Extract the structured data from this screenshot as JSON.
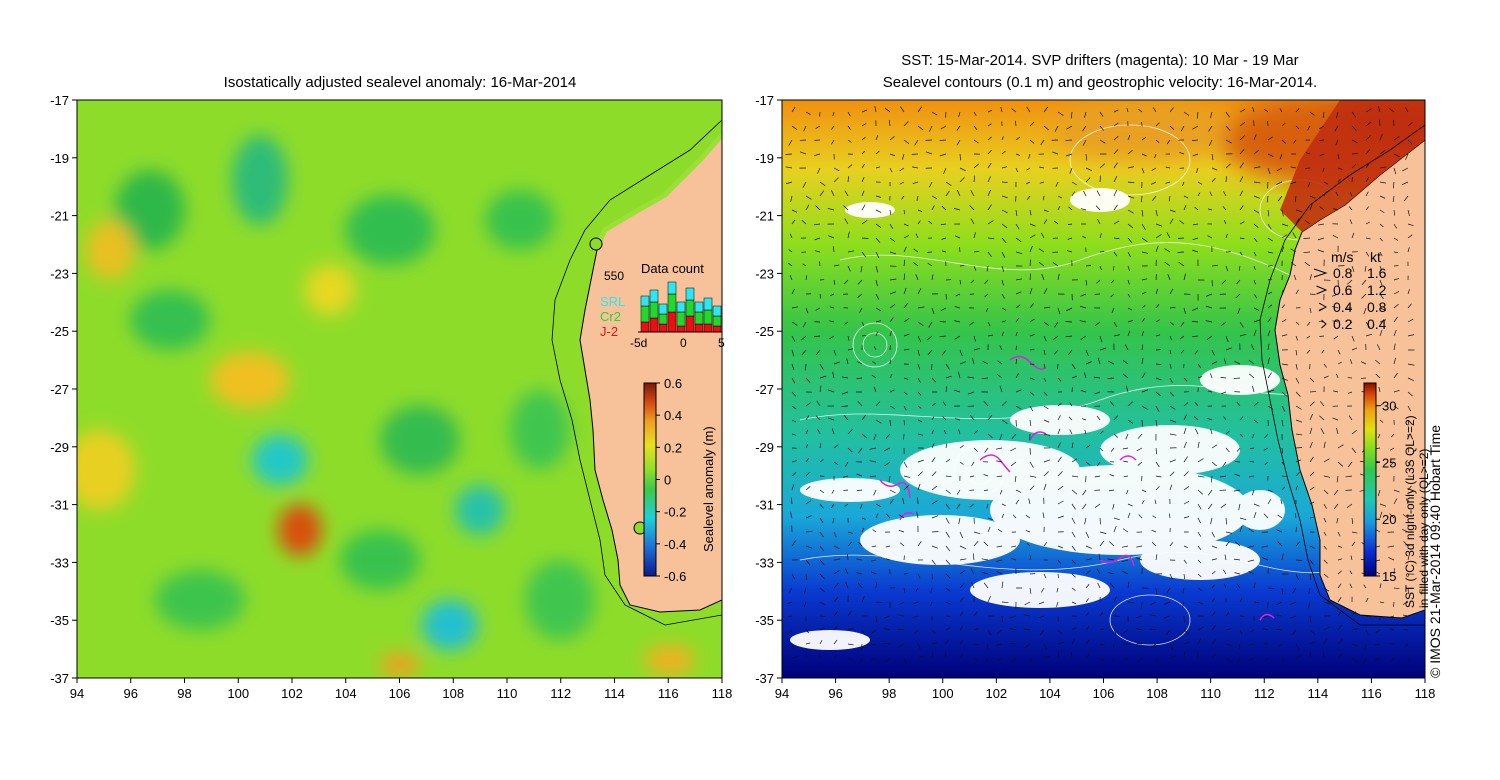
{
  "left_panel": {
    "title": "Isostatically adjusted sealevel anomaly: 16-Mar-2014",
    "lat_ticks": [
      "-17",
      "-19",
      "-21",
      "-23",
      "-25",
      "-27",
      "-29",
      "-31",
      "-33",
      "-35",
      "-37"
    ],
    "lon_ticks": [
      "94",
      "96",
      "98",
      "100",
      "102",
      "104",
      "106",
      "108",
      "110",
      "112",
      "114",
      "116",
      "118"
    ],
    "colorbar": {
      "label": "Sealevel anomaly (m)",
      "ticks": [
        "0.6",
        "0.4",
        "0.2",
        "0",
        "-0.2",
        "-0.4",
        "-0.6"
      ],
      "range": [
        -0.6,
        0.6
      ],
      "colors": [
        "#0a1a8c",
        "#1f6fd6",
        "#1fd0d8",
        "#49d04a",
        "#8ee02a",
        "#e8e020",
        "#f0a020",
        "#d24a10",
        "#7a1a08"
      ]
    },
    "data_count": {
      "title": "Data count",
      "max_label": "550",
      "series": [
        {
          "name": "SRL",
          "color": "#2ee6f0"
        },
        {
          "name": "Cr2",
          "color": "#21d92e"
        },
        {
          "name": "J-2",
          "color": "#e81010"
        }
      ],
      "x_ticks": [
        "-5d",
        "0",
        "5"
      ]
    }
  },
  "right_panel": {
    "title_line1": "SST: 15-Mar-2014. SVP drifters (magenta): 10 Mar - 19 Mar",
    "title_line2": "Sealevel contours (0.1 m) and geostrophic velocity: 16-Mar-2014.",
    "lat_ticks": [
      "-17",
      "-19",
      "-21",
      "-23",
      "-25",
      "-27",
      "-29",
      "-31",
      "-33",
      "-35",
      "-37"
    ],
    "lon_ticks": [
      "94",
      "96",
      "98",
      "100",
      "102",
      "104",
      "106",
      "108",
      "110",
      "112",
      "114",
      "116",
      "118"
    ],
    "velocity_legend": {
      "header_ms": "m/s",
      "header_kt": "kt",
      "rows": [
        {
          "ms": "0.8",
          "kt": "1.6"
        },
        {
          "ms": "0.6",
          "kt": "1.2"
        },
        {
          "ms": "0.4",
          "kt": "0.8"
        },
        {
          "ms": "0.2",
          "kt": "0.4"
        }
      ]
    },
    "colorbar": {
      "ticks": [
        "30",
        "25",
        "20",
        "15"
      ],
      "range": [
        15,
        32
      ],
      "label_line1": "SST (°C) 3d night-only (L3S QL>=2)",
      "label_line2": "in-filled with day-only (QL>=2)",
      "colors": [
        "#00007a",
        "#0a2ad0",
        "#1a9ae0",
        "#20d0c0",
        "#30c850",
        "#8ede1c",
        "#e0e010",
        "#f0a010",
        "#d84808",
        "#8a0a00"
      ]
    }
  },
  "credit": "© IMOS 21-Mar-2014 09:40 Hobart Time"
}
